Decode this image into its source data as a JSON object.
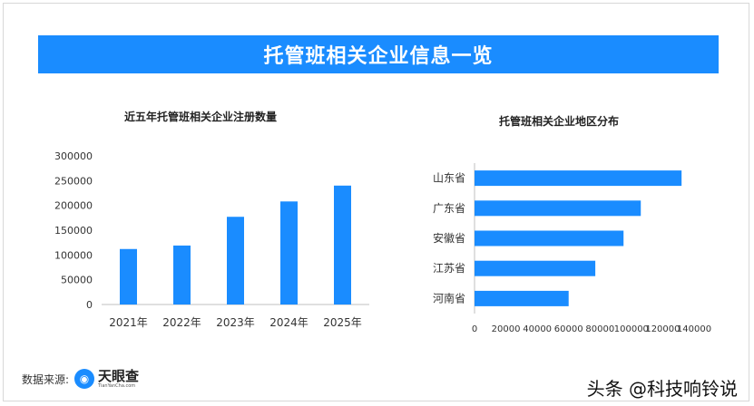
{
  "banner": {
    "title": "托管班相关企业信息一览"
  },
  "chart_data": [
    {
      "type": "bar",
      "title": "近五年托管班相关企业注册数量",
      "xlabel": "",
      "ylabel": "",
      "categories": [
        "2021年",
        "2022年",
        "2023年",
        "2024年",
        "2025年"
      ],
      "values": [
        112000,
        119000,
        177000,
        208000,
        240000
      ],
      "ylim": [
        0,
        300000
      ],
      "yticks": [
        "0",
        "50000",
        "100000",
        "150000",
        "200000",
        "250000",
        "300000"
      ],
      "color": "#1a8cff",
      "grid": false
    },
    {
      "type": "bar",
      "orientation": "horizontal",
      "title": "托管班相关企业地区分布",
      "xlabel": "",
      "ylabel": "",
      "categories": [
        "山东省",
        "广东省",
        "安徽省",
        "江苏省",
        "河南省"
      ],
      "values": [
        132000,
        106000,
        95000,
        77000,
        60000
      ],
      "xlim": [
        0,
        140000
      ],
      "xticks": [
        "0",
        "20000",
        "40000",
        "60000",
        "80000",
        "100000",
        "120000",
        "140000"
      ],
      "color": "#1a8cff",
      "grid": false
    }
  ],
  "footer": {
    "source_label": "数据来源:",
    "logo_cn": "天眼查",
    "logo_en": "TianYanCha.com",
    "watermark": "头条 @科技响铃说"
  }
}
